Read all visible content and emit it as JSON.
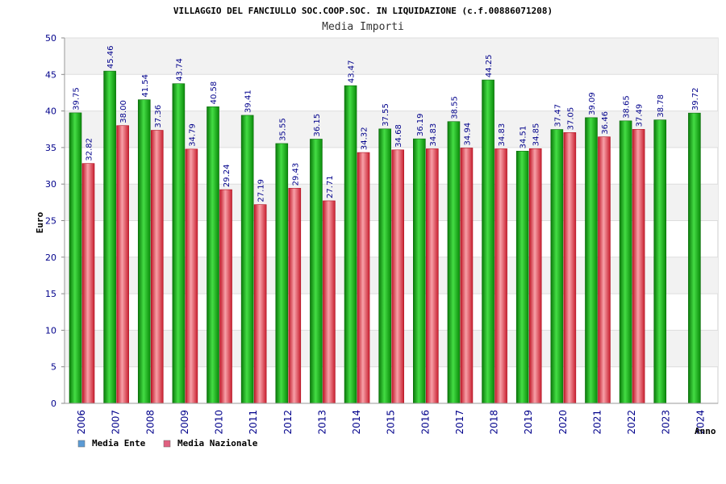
{
  "chart_data": {
    "type": "bar",
    "title": "VILLAGGIO DEL FANCIULLO SOC.COOP.SOC. IN LIQUIDAZIONE (c.f.00886071208)",
    "subtitle": "Media Importi",
    "ylabel": "Euro",
    "xlabel": "Anno",
    "ylim": [
      0,
      50
    ],
    "yticks": [
      0,
      5,
      10,
      15,
      20,
      25,
      30,
      35,
      40,
      45,
      50
    ],
    "categories": [
      "2006",
      "2007",
      "2008",
      "2009",
      "2010",
      "2011",
      "2012",
      "2013",
      "2014",
      "2015",
      "2016",
      "2017",
      "2018",
      "2019",
      "2020",
      "2021",
      "2022",
      "2023",
      "2024"
    ],
    "series": [
      {
        "name": "Media Ente",
        "legend_color": "#5b9bd5",
        "bar_color": "#22bb22",
        "values": [
          39.75,
          45.46,
          41.54,
          43.74,
          40.58,
          39.41,
          35.55,
          36.15,
          43.47,
          37.55,
          36.19,
          38.55,
          44.25,
          34.51,
          37.47,
          39.09,
          38.65,
          38.78,
          39.72
        ],
        "labels": [
          "39.75",
          "45.46",
          "41.54",
          "43.74",
          "40.58",
          "39.41",
          "35.55",
          "36.15",
          "43.47",
          "37.55",
          "36.19",
          "38.55",
          "44.25",
          "34.51",
          "37.47",
          "39.09",
          "38.65",
          "38.78",
          "39.72"
        ]
      },
      {
        "name": "Media Nazionale",
        "legend_color": "#e06080",
        "bar_color": "#e83040",
        "values": [
          32.82,
          38.0,
          37.36,
          34.79,
          29.24,
          27.19,
          29.43,
          27.71,
          34.32,
          34.68,
          34.83,
          34.94,
          34.83,
          34.85,
          37.05,
          36.46,
          37.49,
          null,
          null
        ],
        "labels": [
          "32.82",
          "38.00",
          "37.36",
          "34.79",
          "29.24",
          "27.19",
          "29.43",
          "27.71",
          "34.32",
          "34.68",
          "34.83",
          "34.94",
          "34.83",
          "34.85",
          "37.05",
          "36.46",
          "37.49",
          "",
          ""
        ]
      }
    ],
    "grid": true,
    "legend_position": "bottom-left"
  }
}
